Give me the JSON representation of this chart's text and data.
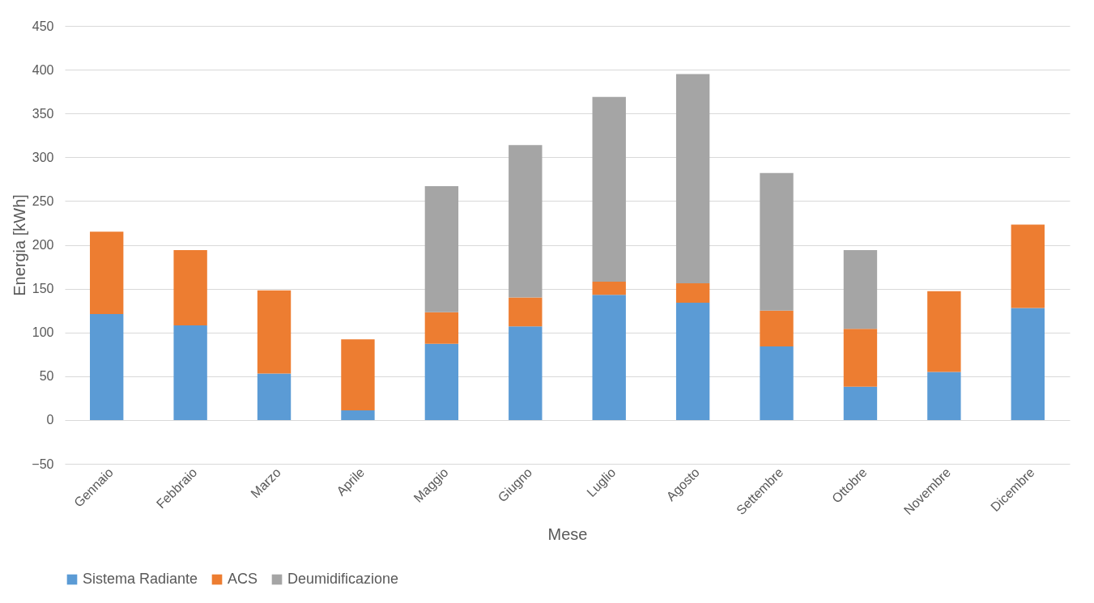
{
  "chart_data": {
    "type": "bar",
    "stacked": true,
    "xlabel": "Mese",
    "ylabel": "Energia [kWh]",
    "categories": [
      "Gennaio",
      "Febbraio",
      "Marzo",
      "Aprile",
      "Maggio",
      "Giugno",
      "Luglio",
      "Agosto",
      "Settembre",
      "Ottobre",
      "Novembre",
      "Dicembre"
    ],
    "series": [
      {
        "name": "Sistema Radiante",
        "color": "#5b9bd5",
        "values": [
          121,
          108,
          53,
          11,
          87,
          107,
          143,
          134,
          84,
          38,
          55,
          128
        ]
      },
      {
        "name": "ACS",
        "color": "#ed7d31",
        "values": [
          94,
          86,
          95,
          81,
          36,
          33,
          15,
          22,
          41,
          66,
          92,
          95
        ]
      },
      {
        "name": "Deumidificazione",
        "color": "#a5a5a5",
        "values": [
          0,
          0,
          0,
          0,
          144,
          174,
          211,
          239,
          157,
          90,
          0,
          0
        ]
      }
    ],
    "ylim": [
      -50,
      450
    ],
    "yticks": [
      -50,
      0,
      50,
      100,
      150,
      200,
      250,
      300,
      350,
      400,
      450
    ],
    "grid": "y",
    "legend": "bottom"
  }
}
